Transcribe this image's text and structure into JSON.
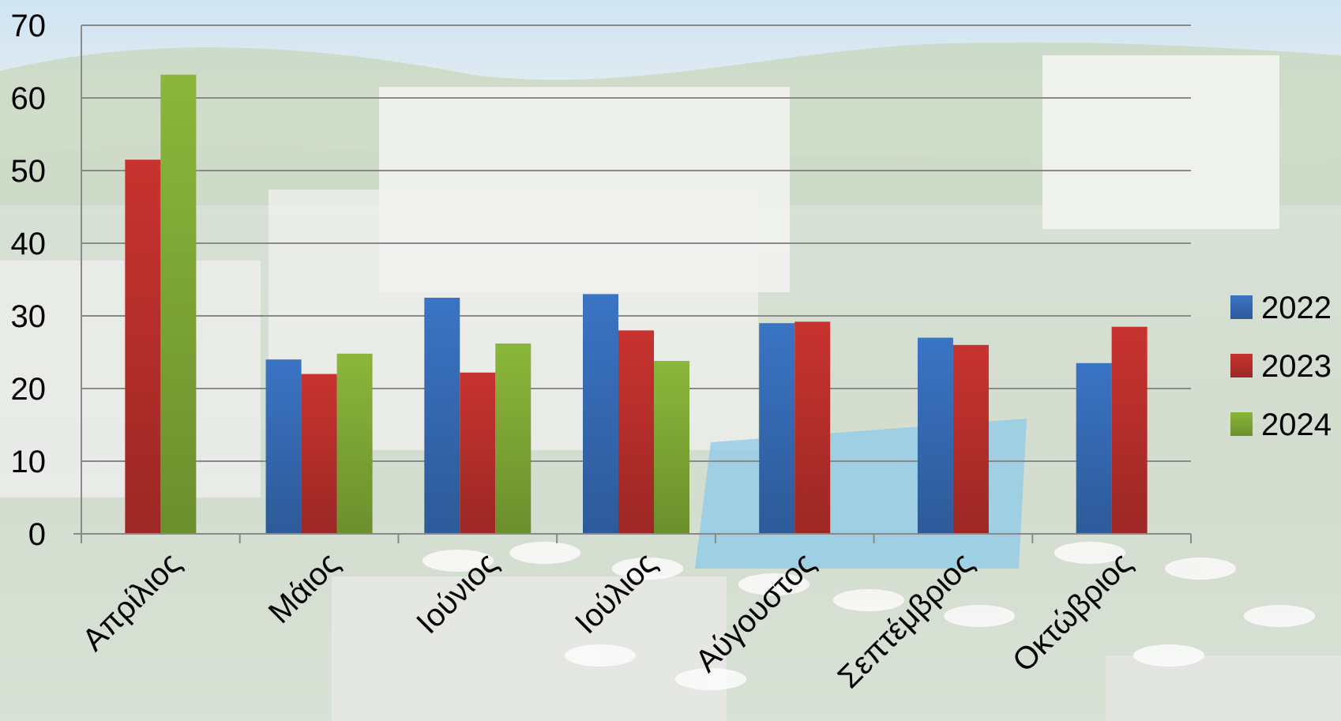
{
  "chart_data": {
    "type": "bar",
    "categories": [
      "Απρίλιος",
      "Μάιος",
      "Ιούνιος",
      "Ιούλιος",
      "Αύγουστος",
      "Σεπτέμβριος",
      "Οκτώβριος"
    ],
    "series": [
      {
        "name": "2022",
        "color": "#3a74c4",
        "values": [
          null,
          24,
          32.5,
          33,
          29,
          27,
          23.5
        ]
      },
      {
        "name": "2023",
        "color": "#c8332f",
        "values": [
          51.5,
          22,
          22.2,
          28,
          29.2,
          26,
          28.5
        ]
      },
      {
        "name": "2024",
        "color": "#8ab73a",
        "values": [
          63.2,
          24.8,
          26.2,
          23.8,
          null,
          null,
          null
        ]
      }
    ],
    "ylim": [
      0,
      70
    ],
    "yticks": [
      0,
      10,
      20,
      30,
      40,
      50,
      60,
      70
    ],
    "grid": true,
    "legend_position": "right",
    "title": "",
    "xlabel": "",
    "ylabel": "",
    "background": "faded photo of a whitewashed hillside hotel with a swimming pool and white sun umbrellas"
  }
}
